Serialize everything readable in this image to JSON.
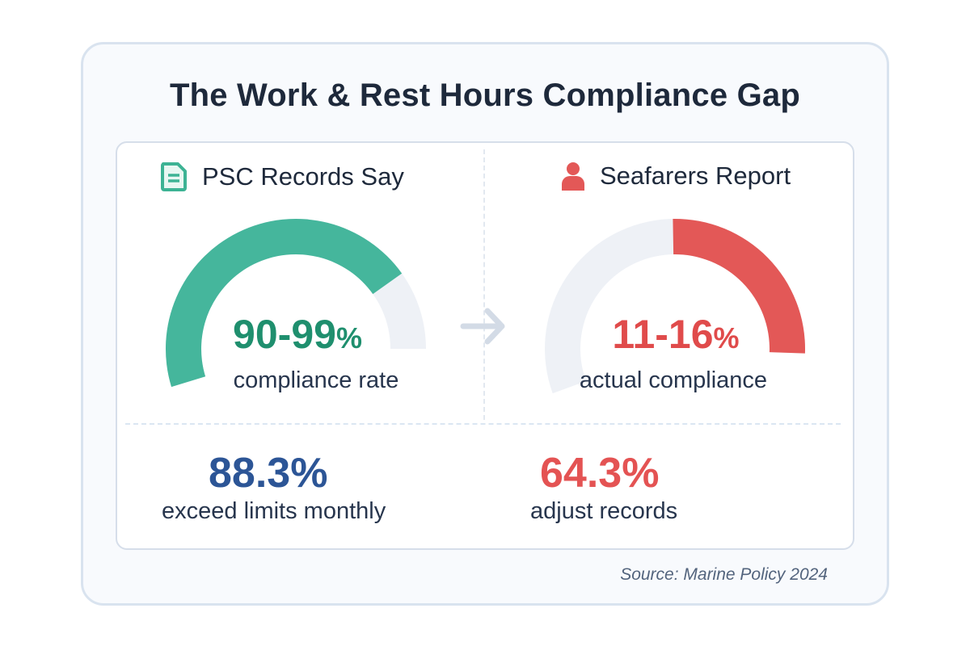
{
  "title": "The Work & Rest Hours Compliance Gap",
  "left": {
    "icon": "document-icon",
    "heading": "PSC Records Say",
    "value": "90-99",
    "unit": "%",
    "label": "compliance rate",
    "gauge_fill_fraction": 0.82,
    "color": "#45b69c",
    "text_color": "#1f8f6e"
  },
  "right": {
    "icon": "person-icon",
    "heading": "Seafarers Report",
    "value": "11-16",
    "unit": "%",
    "label": "actual compliance",
    "gauge_fill_fraction": 0.46,
    "color": "#e35857",
    "text_color": "#e04b4b"
  },
  "arrow_icon": "arrow-right-icon",
  "track_color": "#eef1f6",
  "stats": [
    {
      "value": "88.3%",
      "label": "exceed limits monthly",
      "color": "#2c5596"
    },
    {
      "value": "64.3%",
      "label": "adjust records",
      "color": "#e45353"
    }
  ],
  "source": "Source: Marine Policy 2024"
}
